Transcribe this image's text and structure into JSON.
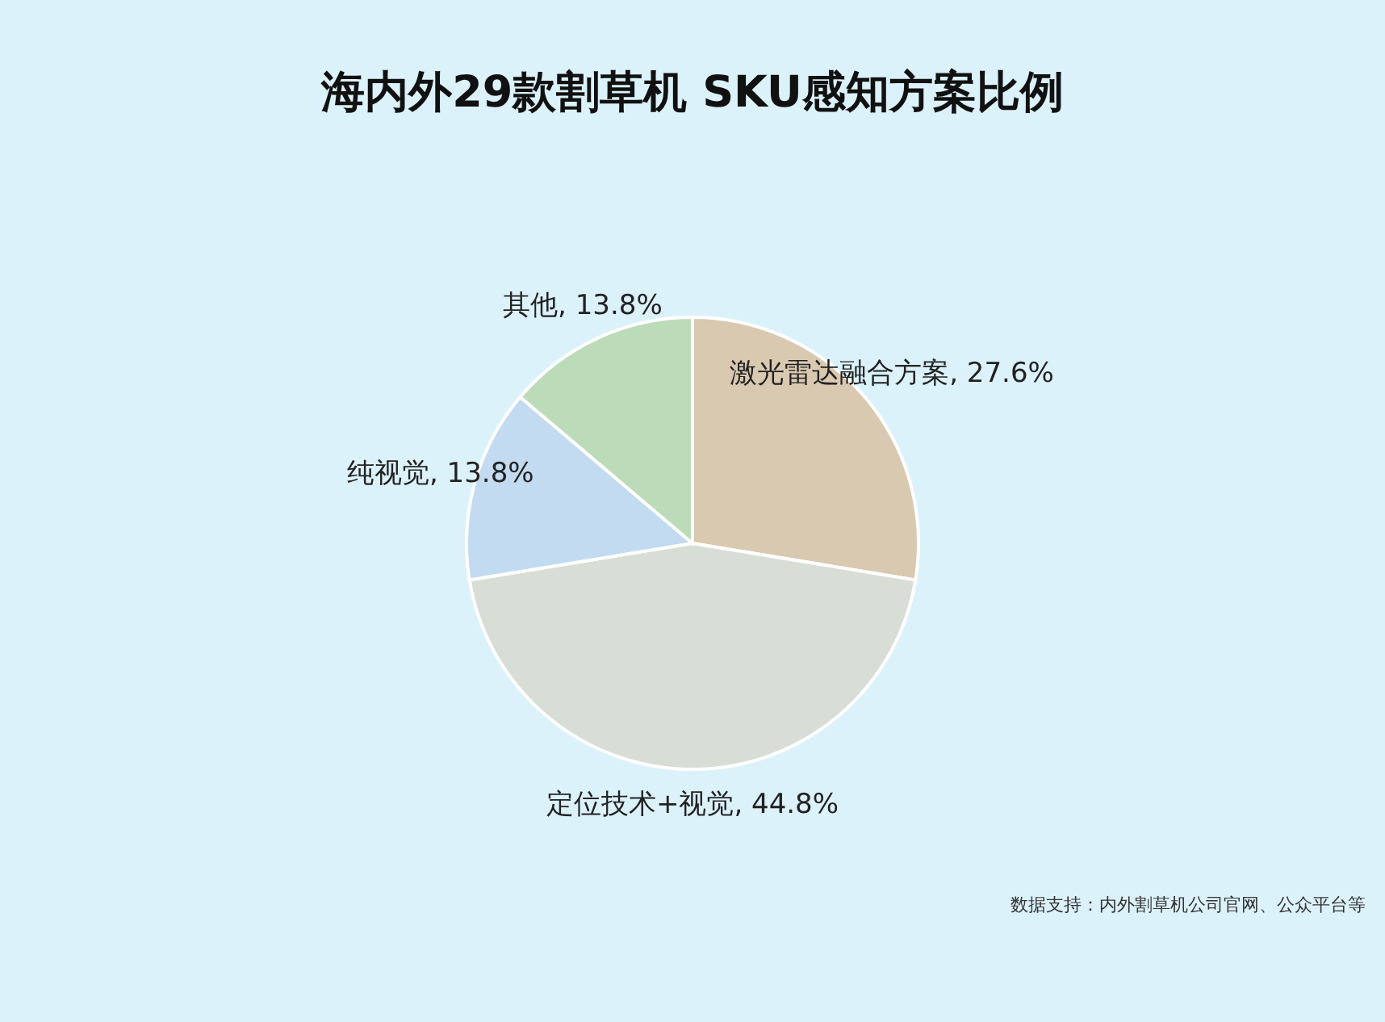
{
  "chart_data": {
    "type": "pie",
    "title": "海内外29款割草机 SKU感知方案比例",
    "categories": [
      "激光雷达融合方案",
      "定位技术+视觉",
      "纯视觉",
      "其他"
    ],
    "values": [
      27.6,
      44.8,
      13.8,
      13.8
    ],
    "value_labels": [
      "27.6%",
      "44.8%",
      "13.8%",
      "13.8%"
    ],
    "colors": [
      "#d9c9b0",
      "#d8ddd6",
      "#c3dbf0",
      "#bcdcb9"
    ],
    "annotations": [
      "数据支持：内外割草机公司官网、公众平台等"
    ]
  }
}
